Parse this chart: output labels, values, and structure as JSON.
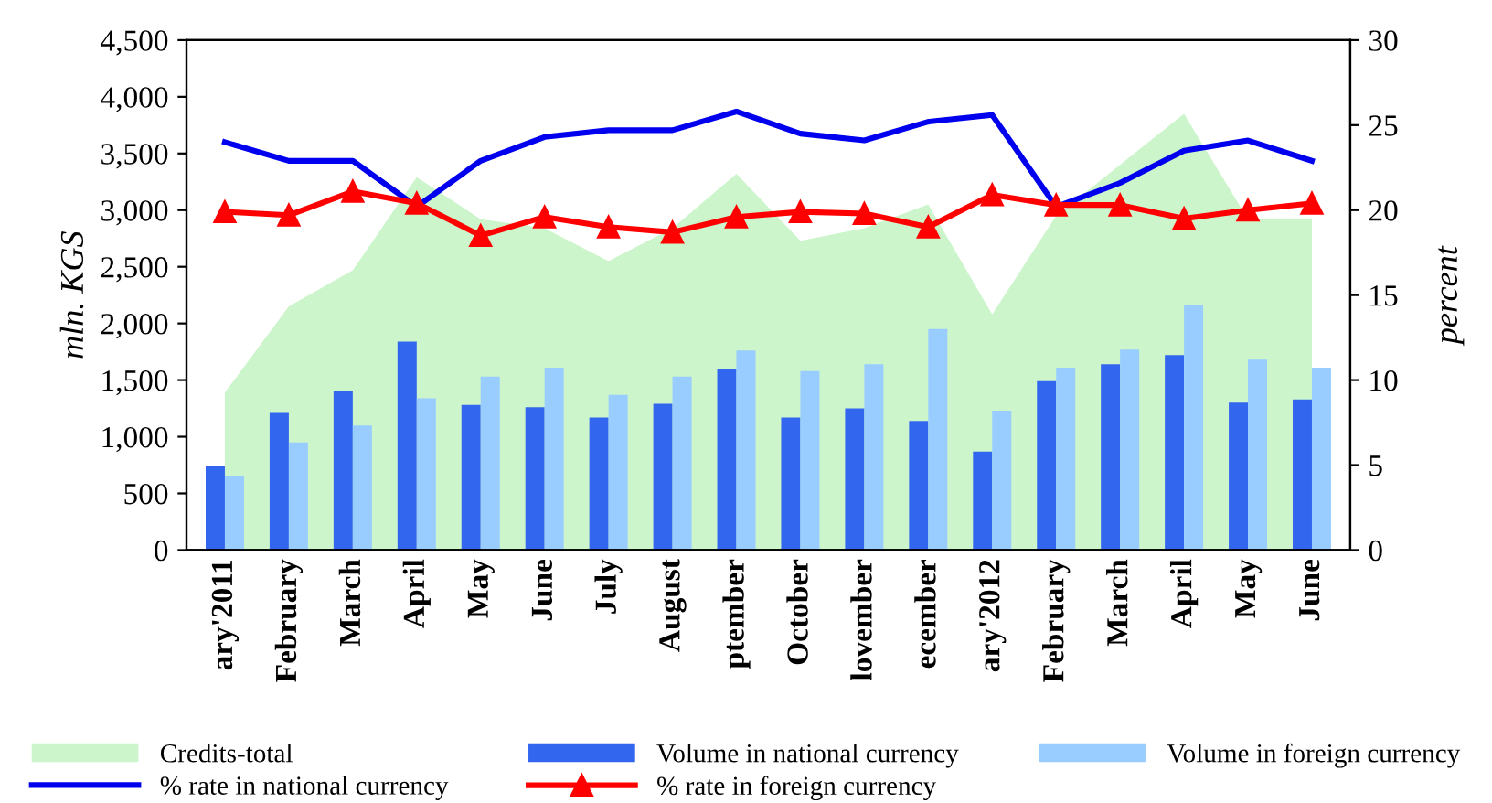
{
  "chart_data": {
    "type": "bar",
    "ylabel": "mln. KGS",
    "y2label": "percent",
    "categories": [
      "ary'2011",
      "February",
      "March",
      "April",
      "May",
      "June",
      "July",
      "August",
      "ptember",
      "October",
      "lovember",
      "ecember",
      "ary'2012",
      "February",
      "March",
      "April",
      "May",
      "June"
    ],
    "series": [
      {
        "name": "Credits-total",
        "type": "area",
        "color": "#ccf5cc",
        "values": [
          1390,
          2150,
          2470,
          3290,
          2920,
          2840,
          2550,
          2840,
          3320,
          2730,
          2840,
          3050,
          2080,
          2950,
          3400,
          3850,
          2920,
          2920
        ]
      },
      {
        "name": "Volume in national currency",
        "color": "#3366ee",
        "values": [
          740,
          1210,
          1400,
          1840,
          1280,
          1260,
          1170,
          1290,
          1600,
          1170,
          1250,
          1140,
          870,
          1490,
          1640,
          1720,
          1300,
          1330
        ]
      },
      {
        "name": "Volume in foreign currency",
        "color": "#99ccff",
        "values": [
          650,
          950,
          1100,
          1340,
          1530,
          1610,
          1370,
          1530,
          1760,
          1580,
          1640,
          1950,
          1230,
          1610,
          1770,
          2160,
          1680,
          1610
        ]
      },
      {
        "name": "% rate in national currency",
        "type": "line",
        "axis": "y2",
        "color": "#0000ee",
        "marker": "none",
        "values": [
          24.0,
          22.9,
          22.9,
          20.2,
          22.9,
          24.3,
          24.7,
          24.7,
          25.8,
          24.5,
          24.1,
          25.2,
          25.6,
          20.2,
          21.6,
          23.5,
          24.1,
          22.9
        ]
      },
      {
        "name": "% rate in foreign currency",
        "type": "line",
        "axis": "y2",
        "color": "#ff0000",
        "marker": "triangle",
        "values": [
          19.9,
          19.7,
          21.1,
          20.4,
          18.5,
          19.6,
          19.0,
          18.7,
          19.6,
          19.9,
          19.8,
          19.0,
          20.9,
          20.3,
          20.3,
          19.5,
          20.0,
          20.4
        ]
      }
    ],
    "ylim": [
      0,
      4500
    ],
    "yticks": [
      {
        "value": 0,
        "label": "0"
      },
      {
        "value": 500,
        "label": "500"
      },
      {
        "value": 1000,
        "label": "1,000"
      },
      {
        "value": 1500,
        "label": "1,500"
      },
      {
        "value": 2000,
        "label": "2,000"
      },
      {
        "value": 2500,
        "label": "2,500"
      },
      {
        "value": 3000,
        "label": "3,000"
      },
      {
        "value": 3500,
        "label": "3,500"
      },
      {
        "value": 4000,
        "label": "4,000"
      },
      {
        "value": 4500,
        "label": "4,500"
      }
    ],
    "y2lim": [
      0,
      30
    ],
    "y2ticks": [
      0,
      5,
      10,
      15,
      20,
      25,
      30
    ],
    "legend": "bottom",
    "grid": false
  }
}
